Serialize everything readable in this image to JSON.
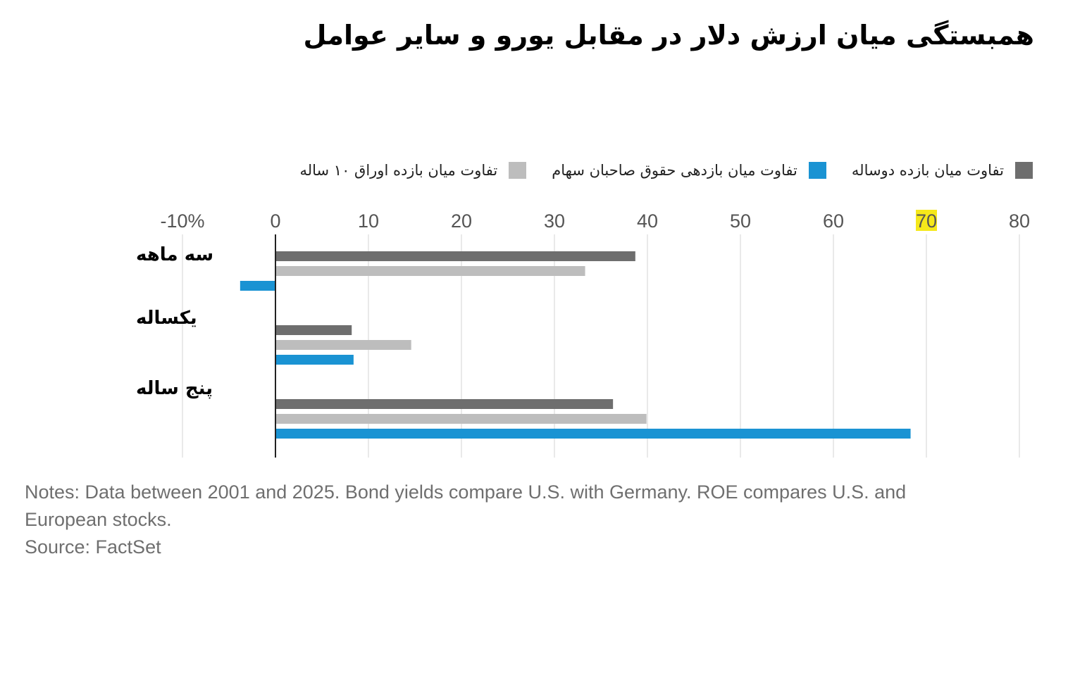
{
  "title": "همبستگی میان ارزش دلار در مقابل یورو و سایر عوامل",
  "chart_data": {
    "type": "bar",
    "orientation": "horizontal",
    "title": "همبستگی میان ارزش دلار در مقابل یورو و سایر عوامل",
    "xlabel": "",
    "ylabel": "",
    "xlim": [
      -10,
      80
    ],
    "grid": true,
    "legend_position": "top",
    "tick_labels": [
      "-10%",
      "0",
      "10",
      "20",
      "30",
      "40",
      "50",
      "60",
      "70",
      "80"
    ],
    "tick_values": [
      -10,
      0,
      10,
      20,
      30,
      40,
      50,
      60,
      70,
      80
    ],
    "highlighted_tick": "70",
    "highlight_color": "#f5e81a",
    "categories": [
      "سه ماهه",
      "یکساله",
      "پنج ساله"
    ],
    "series": [
      {
        "name": "تفاوت میان بازده دوساله",
        "color": "#6e6e6e",
        "values": [
          38.7,
          8.2,
          36.3
        ]
      },
      {
        "name": "تفاوت میان بازده اوراق ۱۰ ساله",
        "color": "#bdbdbd",
        "values": [
          33.3,
          14.6,
          39.9
        ]
      },
      {
        "name": "تفاوت میان بازدهی حقوق صاحبان سهام",
        "color": "#1a93d3",
        "values": [
          -3.8,
          8.4,
          68.3
        ]
      }
    ]
  },
  "legend": [
    {
      "label": "تفاوت میان بازده دوساله",
      "color": "#6e6e6e"
    },
    {
      "label": "تفاوت میان بازدهی حقوق صاحبان سهام",
      "color": "#1a93d3"
    },
    {
      "label": "تفاوت میان بازده اوراق ۱۰ ساله",
      "color": "#bdbdbd"
    }
  ],
  "notes": {
    "line1": "Notes: Data between 2001 and 2025. Bond yields compare U.S. with Germany. ROE compares U.S. and European stocks.",
    "line2": "Source: FactSet"
  }
}
